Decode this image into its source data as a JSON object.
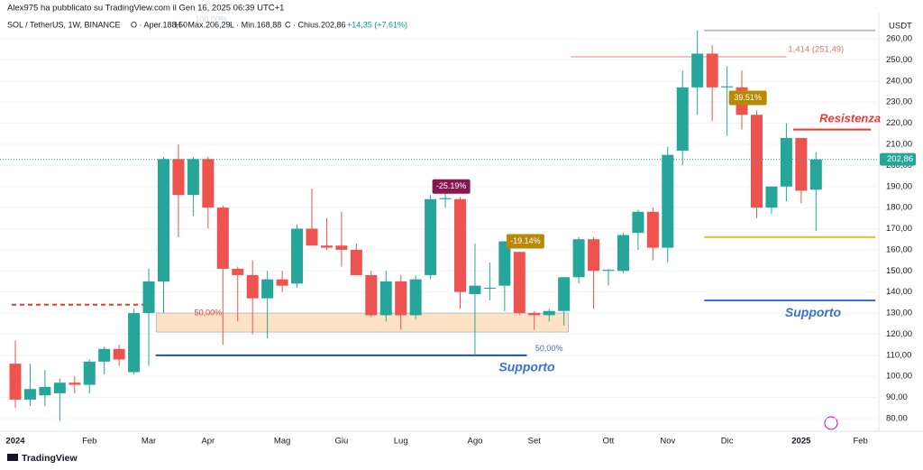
{
  "header": {
    "author": "Alex975 ha pubblicato su TradingView.com il Gen 16, 2025 06:39 UTC+1",
    "symbol": "SOL / TetherUS, 1W, BINANCE",
    "open": "O · Aper.188,50",
    "high": "H · Max.206,29",
    "low": "L · Min.168,88",
    "close": "C · Chius.202,86",
    "change": "+14,35 (+7,61%)"
  },
  "footer": "TradingView",
  "chart_data": {
    "type": "candlestick",
    "unit": "USDT",
    "up_color": "#26a69a",
    "down_color": "#ef5350",
    "last_price": 202.86,
    "last_price_label": "202,86",
    "categories": [
      "2024",
      null,
      null,
      null,
      null,
      "Feb",
      null,
      null,
      null,
      "Mar",
      null,
      null,
      null,
      "Apr",
      null,
      null,
      null,
      null,
      "Mag",
      null,
      null,
      null,
      "Giu",
      null,
      null,
      null,
      "Lug",
      null,
      null,
      null,
      null,
      "Ago",
      null,
      null,
      null,
      "Set",
      null,
      null,
      null,
      null,
      "Ott",
      null,
      null,
      null,
      "Nov",
      null,
      null,
      null,
      "Dic",
      null,
      null,
      null,
      null,
      "2025",
      null,
      null,
      null,
      "Feb"
    ],
    "open": [
      106,
      89,
      91,
      92,
      97,
      96,
      107,
      113,
      102,
      130,
      145,
      203,
      186,
      203,
      180,
      151,
      148,
      137,
      146,
      144,
      170,
      162,
      162,
      160,
      148,
      129,
      145,
      129,
      148,
      184,
      184,
      139,
      142,
      143,
      159,
      130,
      129,
      131,
      147,
      165,
      150,
      150,
      168,
      178,
      161,
      207,
      237,
      253,
      237,
      237,
      224,
      180,
      190,
      213,
      188.5,
      null,
      null,
      null
    ],
    "high": [
      117,
      106,
      103,
      99,
      100,
      108,
      114,
      115,
      132,
      151,
      204,
      210,
      204,
      204,
      181,
      152,
      155,
      150,
      150,
      172,
      189,
      175,
      178,
      163,
      150,
      150,
      148,
      148,
      186,
      189,
      185,
      163,
      154,
      164,
      159,
      131,
      132,
      147,
      166,
      166,
      151,
      168,
      179,
      180,
      209,
      245,
      264,
      257,
      247,
      245,
      226,
      190,
      220,
      213,
      206.29,
      null,
      null,
      null
    ],
    "low": [
      85,
      86,
      86,
      79,
      92,
      92,
      101,
      105,
      101,
      105,
      130,
      166,
      176,
      170,
      115,
      126,
      120,
      118,
      140,
      142,
      163,
      160,
      152,
      148,
      128,
      126,
      122,
      127,
      146,
      180,
      132,
      110,
      136,
      131,
      129,
      122,
      126,
      124,
      144,
      132,
      143,
      149,
      160,
      155,
      154,
      200,
      224,
      221,
      214,
      217,
      175,
      177,
      183,
      182,
      168.88,
      null,
      null,
      null
    ],
    "close": [
      89,
      94,
      95,
      97,
      96,
      107,
      113,
      108,
      130,
      145,
      203,
      186,
      203,
      180,
      151,
      148,
      137,
      146,
      143,
      170,
      162,
      161,
      160,
      148,
      129,
      145,
      129,
      146,
      184,
      184.5,
      140,
      143,
      142,
      164,
      130,
      129,
      131,
      147,
      165,
      150,
      150.5,
      167,
      178,
      161,
      205,
      237,
      253,
      237,
      237.5,
      224,
      180,
      190,
      213,
      188,
      202.86,
      null,
      null,
      null
    ],
    "ylim": [
      74,
      272
    ],
    "yticks": [
      {
        "value": 80,
        "label": "80,00"
      },
      {
        "value": 90,
        "label": "90,00"
      },
      {
        "value": 100,
        "label": "100,00"
      },
      {
        "value": 110,
        "label": "110,00"
      },
      {
        "value": 120,
        "label": "120,00"
      },
      {
        "value": 130,
        "label": "130,00"
      },
      {
        "value": 140,
        "label": "140,00"
      },
      {
        "value": 150,
        "label": "150,00"
      },
      {
        "value": 160,
        "label": "160,00"
      },
      {
        "value": 170,
        "label": "170,00"
      },
      {
        "value": 180,
        "label": "180,00"
      },
      {
        "value": 190,
        "label": "190,00"
      },
      {
        "value": 200,
        "label": "200,00"
      },
      {
        "value": 210,
        "label": "210,00"
      },
      {
        "value": 220,
        "label": "220,00"
      },
      {
        "value": 230,
        "label": "230,00"
      },
      {
        "value": 240,
        "label": "240,00"
      },
      {
        "value": 250,
        "label": "250,00"
      },
      {
        "value": 260,
        "label": "260,00"
      }
    ],
    "levels": [
      {
        "price": 134,
        "color": "#e53935"
      },
      {
        "price": 110,
        "color": "#1e4fc2"
      },
      {
        "price": 251.49,
        "color": "#f08080"
      },
      {
        "price": 264,
        "color": "#bbbbbb"
      },
      {
        "price": 166,
        "color": "#f2b630"
      },
      {
        "price": 136,
        "color": "#3a6fd8"
      },
      {
        "price": 217,
        "color": "#e53935"
      }
    ],
    "zone": [
      121,
      130
    ],
    "annotations": [
      {
        "text": "100,00%",
        "price": 269
      },
      {
        "text": "50,00%",
        "price": 130
      },
      {
        "text": "50,00%",
        "price": 113
      },
      {
        "text": "Supporto",
        "price": 104
      },
      {
        "text": "-25.19%",
        "price": 190
      },
      {
        "text": "-19.14%",
        "price": 164
      },
      {
        "text": "1,414 (251,49)",
        "price": 255
      },
      {
        "text": "39.51%",
        "price": 232
      },
      {
        "text": "Resistenza",
        "price": 222
      },
      {
        "text": "Supporto",
        "price": 130
      }
    ]
  }
}
